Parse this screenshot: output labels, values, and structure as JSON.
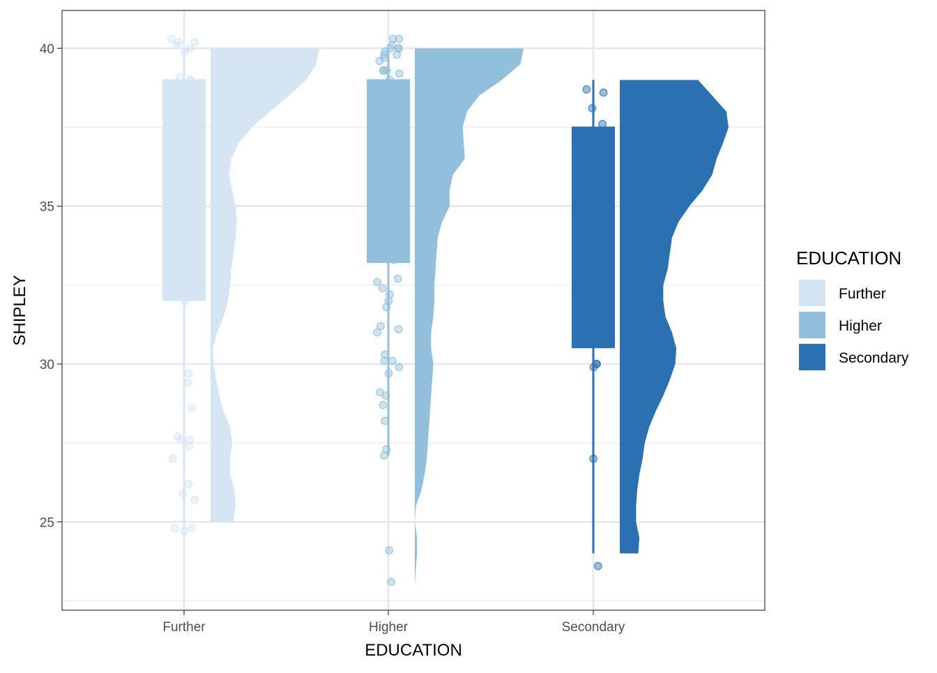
{
  "chart_data": {
    "type": "raincloud",
    "title": "",
    "xlabel": "EDUCATION",
    "ylabel": "SHIPLEY",
    "ylim": [
      22.2,
      41.2
    ],
    "yticks": [
      25,
      30,
      35,
      40
    ],
    "grid": true,
    "legend_position": "right",
    "legend": {
      "title": "EDUCATION",
      "entries": [
        "Further",
        "Higher",
        "Secondary"
      ]
    },
    "categories": [
      "Further",
      "Higher",
      "Secondary"
    ],
    "colors": {
      "Further": "#d6e5f4",
      "Higher": "#92bfdb",
      "Secondary": "#2b70b1"
    },
    "series": [
      {
        "name": "Further",
        "box": {
          "min": 24.8,
          "q1": 32.0,
          "median": 39.0,
          "q3": 39.0,
          "max": 40.0
        },
        "points": [
          40.3,
          40.2,
          40.2,
          40.1,
          40.0,
          39.9,
          39.1,
          39.0,
          39.0,
          32.0,
          29.7,
          29.4,
          28.6,
          27.7,
          27.6,
          27.6,
          27.4,
          27.0,
          26.2,
          25.9,
          25.7,
          24.8,
          24.8,
          24.7
        ],
        "density": {
          "y": [
            25.0,
            25.5,
            26.0,
            26.5,
            27.0,
            27.5,
            28.0,
            28.5,
            29.0,
            29.5,
            30.0,
            30.5,
            31.0,
            31.5,
            32.0,
            32.5,
            33.0,
            33.5,
            34.0,
            34.5,
            35.0,
            35.5,
            36.0,
            36.5,
            37.0,
            37.5,
            38.0,
            38.5,
            39.0,
            39.5,
            40.0
          ],
          "d": [
            0.21,
            0.23,
            0.22,
            0.18,
            0.18,
            0.2,
            0.18,
            0.12,
            0.08,
            0.05,
            0.03,
            0.02,
            0.06,
            0.12,
            0.16,
            0.18,
            0.19,
            0.21,
            0.23,
            0.24,
            0.23,
            0.2,
            0.17,
            0.19,
            0.26,
            0.38,
            0.55,
            0.72,
            0.88,
            0.97,
            1.0
          ]
        }
      },
      {
        "name": "Higher",
        "box": {
          "min": 27.1,
          "q1": 33.2,
          "median": 39.0,
          "q3": 39.0,
          "max": 40.0
        },
        "points": [
          40.3,
          40.3,
          40.1,
          40.0,
          40.0,
          40.0,
          39.9,
          39.8,
          39.8,
          39.7,
          39.6,
          39.3,
          39.3,
          39.3,
          39.2,
          39.0,
          33.3,
          32.7,
          32.6,
          32.4,
          32.2,
          32.0,
          31.8,
          31.2,
          31.1,
          31.0,
          30.3,
          30.1,
          30.1,
          29.9,
          29.7,
          29.1,
          29.0,
          28.7,
          28.2,
          27.3,
          27.1,
          24.1,
          23.1
        ],
        "density": {
          "y": [
            23.0,
            23.5,
            24.0,
            24.5,
            25.0,
            25.5,
            26.0,
            26.5,
            27.0,
            27.5,
            28.0,
            28.5,
            29.0,
            29.5,
            30.0,
            30.5,
            31.0,
            31.5,
            32.0,
            32.5,
            33.0,
            33.5,
            34.0,
            34.5,
            35.0,
            35.5,
            36.0,
            36.5,
            37.0,
            37.5,
            38.0,
            38.5,
            39.0,
            39.5,
            40.0
          ],
          "d": [
            0.0,
            0.01,
            0.02,
            0.02,
            0.0,
            0.01,
            0.06,
            0.09,
            0.11,
            0.12,
            0.13,
            0.14,
            0.15,
            0.16,
            0.17,
            0.15,
            0.15,
            0.17,
            0.18,
            0.18,
            0.19,
            0.2,
            0.21,
            0.25,
            0.32,
            0.32,
            0.35,
            0.46,
            0.45,
            0.44,
            0.48,
            0.59,
            0.8,
            0.97,
            1.0
          ]
        }
      },
      {
        "name": "Secondary",
        "box": {
          "min": 24.0,
          "q1": 30.5,
          "median": 37.5,
          "q3": 37.5,
          "max": 39.0
        },
        "points": [
          38.7,
          38.6,
          38.1,
          37.6,
          30.0,
          30.0,
          29.9,
          27.0,
          23.6
        ],
        "density": {
          "y": [
            24.0,
            24.5,
            25.0,
            25.5,
            26.0,
            26.5,
            27.0,
            27.5,
            28.0,
            28.5,
            29.0,
            29.5,
            30.0,
            30.5,
            31.0,
            31.5,
            32.0,
            32.5,
            33.0,
            33.5,
            34.0,
            34.5,
            35.0,
            35.5,
            36.0,
            36.5,
            37.0,
            37.5,
            38.0,
            38.5,
            39.0
          ],
          "d": [
            0.17,
            0.18,
            0.15,
            0.15,
            0.16,
            0.18,
            0.21,
            0.23,
            0.27,
            0.33,
            0.4,
            0.46,
            0.51,
            0.52,
            0.48,
            0.42,
            0.4,
            0.4,
            0.44,
            0.46,
            0.48,
            0.54,
            0.64,
            0.76,
            0.85,
            0.89,
            0.95,
            1.0,
            0.98,
            0.85,
            0.72
          ]
        }
      }
    ]
  }
}
